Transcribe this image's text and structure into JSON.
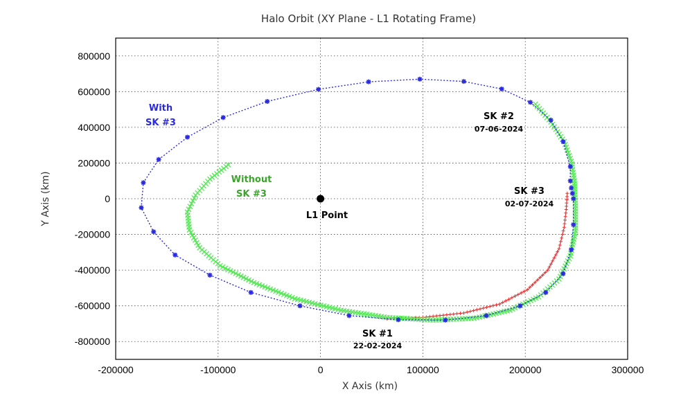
{
  "chart_data": {
    "type": "line",
    "title": "Halo Orbit (XY Plane - L1 Rotating Frame)",
    "xlabel": "X Axis (km)",
    "ylabel": "Y Axis (km)",
    "xlim": [
      -200000,
      300000
    ],
    "ylim": [
      -900000,
      900000
    ],
    "x_ticks": [
      -200000,
      -100000,
      0,
      100000,
      200000,
      300000
    ],
    "y_ticks": [
      -800000,
      -600000,
      -400000,
      -200000,
      0,
      200000,
      400000,
      600000,
      800000
    ],
    "x_tick_labels": [
      "-200000",
      "-100000",
      "0",
      "100000",
      "200000",
      "300000"
    ],
    "y_tick_labels": [
      "-800000",
      "-600000",
      "-400000",
      "-200000",
      "0",
      "200000",
      "400000",
      "600000",
      "800000"
    ],
    "grid": true,
    "series": [
      {
        "key": "with",
        "color": "#2a2ae0",
        "marker": "asterisk",
        "points": [
          [
            247000,
            0
          ],
          [
            246000,
            30000
          ],
          [
            245000,
            60000
          ],
          [
            244000,
            100000
          ],
          [
            244000,
            180000
          ],
          [
            237000,
            320000
          ],
          [
            225000,
            440000
          ],
          [
            205000,
            540000
          ],
          [
            177000,
            615000
          ],
          [
            140000,
            657000
          ],
          [
            97000,
            670000
          ],
          [
            47000,
            655000
          ],
          [
            -2000,
            613000
          ],
          [
            -52000,
            545000
          ],
          [
            -95000,
            455000
          ],
          [
            -130000,
            345000
          ],
          [
            -158000,
            220000
          ],
          [
            -173000,
            90000
          ],
          [
            -175000,
            -50000
          ],
          [
            -163000,
            -185000
          ],
          [
            -142000,
            -315000
          ],
          [
            -108000,
            -428000
          ],
          [
            -68000,
            -525000
          ],
          [
            -20000,
            -600000
          ],
          [
            28000,
            -655000
          ],
          [
            76000,
            -678000
          ],
          [
            122000,
            -680000
          ],
          [
            162000,
            -655000
          ],
          [
            195000,
            -600000
          ],
          [
            220000,
            -525000
          ],
          [
            237000,
            -420000
          ],
          [
            245000,
            -285000
          ],
          [
            247000,
            -145000
          ],
          [
            247000,
            0
          ]
        ]
      },
      {
        "key": "without",
        "color": "#55e855",
        "marker": "x",
        "points": [
          [
            -90000,
            190000
          ],
          [
            -108000,
            110000
          ],
          [
            -122000,
            20000
          ],
          [
            -130000,
            -75000
          ],
          [
            -128000,
            -175000
          ],
          [
            -118000,
            -275000
          ],
          [
            -98000,
            -375000
          ],
          [
            -65000,
            -470000
          ],
          [
            -25000,
            -560000
          ],
          [
            20000,
            -625000
          ],
          [
            65000,
            -665000
          ],
          [
            110000,
            -680000
          ],
          [
            150000,
            -670000
          ],
          [
            185000,
            -625000
          ],
          [
            213000,
            -550000
          ],
          [
            233000,
            -450000
          ],
          [
            244000,
            -320000
          ],
          [
            249000,
            -180000
          ],
          [
            249000,
            -40000
          ],
          [
            248000,
            100000
          ],
          [
            245000,
            210000
          ],
          [
            238000,
            320000
          ],
          [
            225000,
            430000
          ],
          [
            210000,
            530000
          ]
        ]
      },
      {
        "key": "sk3_burn",
        "color": "#e03030",
        "marker": "plus",
        "points": [
          [
            241000,
            30000
          ],
          [
            240000,
            -60000
          ],
          [
            238000,
            -160000
          ],
          [
            233000,
            -280000
          ],
          [
            222000,
            -400000
          ],
          [
            202000,
            -510000
          ],
          [
            175000,
            -590000
          ],
          [
            140000,
            -640000
          ],
          [
            100000,
            -665000
          ],
          [
            65000,
            -672000
          ]
        ]
      }
    ],
    "l1_point": {
      "x": 0,
      "y": 0,
      "label": "L1 Point"
    },
    "annotations": {
      "with_line1": "With",
      "with_line2": "SK #3",
      "without_line1": "Without",
      "without_line2": "SK #3",
      "sk1": "SK #1",
      "sk1_date": "22-02-2024",
      "sk2": "SK #2",
      "sk2_date": "07-06-2024",
      "sk3": "SK #3",
      "sk3_date": "02-07-2024"
    }
  }
}
